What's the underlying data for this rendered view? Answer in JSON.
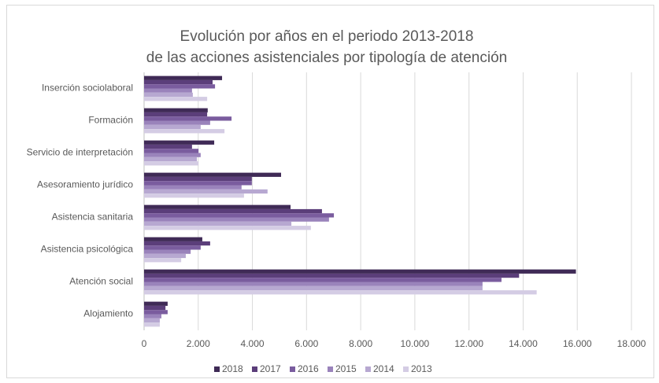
{
  "chart_data": {
    "type": "bar",
    "orientation": "horizontal",
    "title": [
      "Evolución por años en el periodo 2013-2018",
      "de las acciones asistenciales por tipología de atención"
    ],
    "categories": [
      "Inserción sociolaboral",
      "Formación",
      "Servicio de interpretación",
      "Asesoramiento jurídico",
      "Asistencia sanitaria",
      "Asistencia psicológica",
      "Atención social",
      "Alojamiento"
    ],
    "series": [
      {
        "name": "2018",
        "color": "#3f2a56",
        "values": [
          2880,
          2350,
          2590,
          5060,
          5410,
          2150,
          15950,
          870
        ]
      },
      {
        "name": "2017",
        "color": "#5b3e7a",
        "values": [
          2530,
          2330,
          1770,
          3980,
          6570,
          2440,
          13850,
          790
        ]
      },
      {
        "name": "2016",
        "color": "#7a5c9e",
        "values": [
          2620,
          3230,
          2010,
          3980,
          7010,
          2090,
          13200,
          870
        ]
      },
      {
        "name": "2015",
        "color": "#9a83bb",
        "values": [
          1770,
          2440,
          2090,
          3600,
          6830,
          1720,
          12500,
          640
        ]
      },
      {
        "name": "2014",
        "color": "#b7a8d1",
        "values": [
          1800,
          2090,
          1950,
          4560,
          5440,
          1540,
          12500,
          580
        ]
      },
      {
        "name": "2013",
        "color": "#d4cce4",
        "values": [
          2330,
          2970,
          2010,
          3690,
          6160,
          1370,
          14500,
          580
        ]
      }
    ],
    "xlim": [
      0,
      18000
    ],
    "xticks": [
      0,
      {
        "value": 2000,
        "label": "2.000"
      },
      {
        "value": 4000,
        "label": "4.000"
      },
      {
        "value": 6000,
        "label": "6.000"
      },
      {
        "value": 8000,
        "label": "8.000"
      },
      {
        "value": 10000,
        "label": "10.000"
      },
      {
        "value": 12000,
        "label": "12.000"
      },
      {
        "value": 14000,
        "label": "14.000"
      },
      {
        "value": 16000,
        "label": "16.000"
      },
      {
        "value": 18000,
        "label": "18.000"
      }
    ],
    "grid": true,
    "legend": "bottom"
  }
}
